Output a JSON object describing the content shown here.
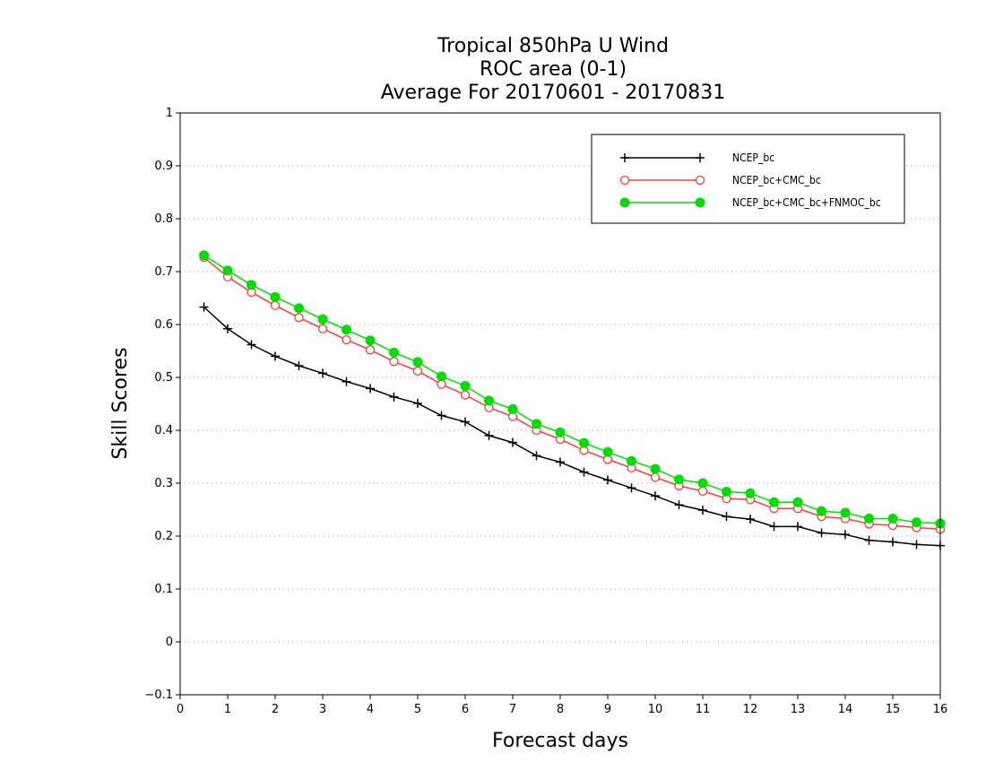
{
  "chart_data": {
    "type": "line",
    "title_lines": [
      "Tropical 850hPa U Wind",
      "ROC area (0-1)",
      "Average For 20170601 - 20170831"
    ],
    "xlabel": "Forecast days",
    "ylabel": "Skill Scores",
    "xlim": [
      0,
      16
    ],
    "ylim": [
      -0.1,
      1
    ],
    "x_ticks": [
      "0",
      "1",
      "2",
      "3",
      "4",
      "5",
      "6",
      "7",
      "8",
      "9",
      "10",
      "11",
      "12",
      "13",
      "14",
      "15",
      "16"
    ],
    "y_ticks": [
      "−0.1",
      "0",
      "0.1",
      "0.2",
      "0.3",
      "0.4",
      "0.5",
      "0.6",
      "0.7",
      "0.8",
      "0.9",
      "1"
    ],
    "y_tick_values": [
      -0.1,
      0,
      0.1,
      0.2,
      0.3,
      0.4,
      0.5,
      0.6,
      0.7,
      0.8,
      0.9,
      1
    ],
    "grid": "horizontal dotted",
    "legend_position": "top-right",
    "x": [
      0.5,
      1,
      1.5,
      2,
      2.5,
      3,
      3.5,
      4,
      4.5,
      5,
      5.5,
      6,
      6.5,
      7,
      7.5,
      8,
      8.5,
      9,
      9.5,
      10,
      10.5,
      11,
      11.5,
      12,
      12.5,
      13,
      13.5,
      14,
      14.5,
      15,
      15.5,
      16
    ],
    "series": [
      {
        "name": "NCEP_bc",
        "color": "#000000",
        "marker": "plus",
        "values": [
          0.633,
          0.592,
          0.562,
          0.54,
          0.522,
          0.508,
          0.492,
          0.479,
          0.463,
          0.451,
          0.428,
          0.416,
          0.39,
          0.377,
          0.352,
          0.34,
          0.321,
          0.306,
          0.291,
          0.276,
          0.259,
          0.249,
          0.237,
          0.232,
          0.218,
          0.218,
          0.206,
          0.203,
          0.192,
          0.189,
          0.184,
          0.182
        ]
      },
      {
        "name": "NCEP_bc+CMC_bc",
        "color": "#ff3b3b",
        "marker": "open-circle",
        "values": [
          0.727,
          0.69,
          0.661,
          0.636,
          0.613,
          0.592,
          0.571,
          0.552,
          0.53,
          0.512,
          0.487,
          0.467,
          0.443,
          0.426,
          0.4,
          0.383,
          0.362,
          0.345,
          0.329,
          0.311,
          0.295,
          0.285,
          0.271,
          0.269,
          0.252,
          0.252,
          0.237,
          0.233,
          0.223,
          0.22,
          0.216,
          0.213
        ]
      },
      {
        "name": "NCEP_bc+CMC_bc+FNMOC_bc",
        "color": "#00dd00",
        "marker": "filled-circle",
        "values": [
          0.731,
          0.702,
          0.675,
          0.652,
          0.631,
          0.61,
          0.59,
          0.57,
          0.547,
          0.529,
          0.502,
          0.484,
          0.456,
          0.44,
          0.412,
          0.396,
          0.376,
          0.359,
          0.342,
          0.327,
          0.307,
          0.3,
          0.284,
          0.281,
          0.264,
          0.264,
          0.247,
          0.244,
          0.233,
          0.233,
          0.226,
          0.224
        ]
      }
    ]
  }
}
